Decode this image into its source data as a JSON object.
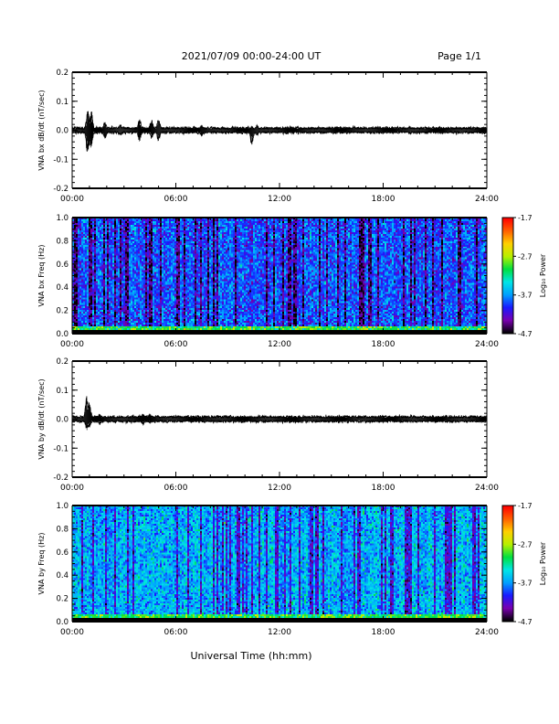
{
  "header": {
    "title": "2021/07/09  00:00-24:00 UT",
    "page": "Page 1/1"
  },
  "footer": {
    "xlabel": "Universal Time (hh:mm)"
  },
  "colors": {
    "trace": "#000000",
    "colormap": [
      "#000000",
      "#7a00b0",
      "#1a1aff",
      "#00a0ff",
      "#00e6e6",
      "#00e040",
      "#b8f000",
      "#ffd000",
      "#ff6000",
      "#ff0000"
    ]
  },
  "chart_data": [
    {
      "type": "line",
      "ylabel": "VNA bx dB/dt (nT/sec)",
      "x_ticks": [
        "00:00",
        "06:00",
        "12:00",
        "18:00",
        "24:00"
      ],
      "y_ticks": [
        "0.2",
        "0.1",
        "0.0",
        "-0.1",
        "-0.2"
      ],
      "xlim": [
        0,
        24
      ],
      "ylim": [
        -0.2,
        0.2
      ],
      "noise_floor": 0.004,
      "events": [
        {
          "t": 0.9,
          "amp_pos": 0.07,
          "amp_neg": -0.09
        },
        {
          "t": 1.1,
          "amp_pos": 0.07,
          "amp_neg": -0.06
        },
        {
          "t": 1.9,
          "amp_pos": 0.03,
          "amp_neg": -0.03
        },
        {
          "t": 2.8,
          "amp_pos": 0.02,
          "amp_neg": -0.02
        },
        {
          "t": 3.9,
          "amp_pos": 0.04,
          "amp_neg": -0.04
        },
        {
          "t": 4.6,
          "amp_pos": 0.04,
          "amp_neg": -0.03
        },
        {
          "t": 5.0,
          "amp_pos": 0.04,
          "amp_neg": -0.04
        },
        {
          "t": 7.5,
          "amp_pos": 0.02,
          "amp_neg": -0.02
        },
        {
          "t": 10.4,
          "amp_pos": 0.01,
          "amp_neg": -0.05
        },
        {
          "t": 10.7,
          "amp_pos": 0.02,
          "amp_neg": -0.02
        }
      ]
    },
    {
      "type": "heatmap",
      "ylabel": "VNA bx Freq (Hz)",
      "x_ticks": [
        "00:00",
        "06:00",
        "12:00",
        "18:00",
        "24:00"
      ],
      "y_ticks": [
        "1.0",
        "0.8",
        "0.6",
        "0.4",
        "0.2",
        "0.0"
      ],
      "xlim": [
        0,
        24
      ],
      "ylim": [
        0,
        1
      ],
      "colorbar_label": "Log₁₀ Power",
      "colorbar_ticks": [
        "-1.7",
        "-2.7",
        "-3.7",
        "-4.7"
      ],
      "zlim": [
        -4.7,
        -1.7
      ],
      "background_level": -3.9,
      "low_freq_level": -3.0,
      "variability": 0.45
    },
    {
      "type": "line",
      "ylabel": "VNA by dB/dt (nT/sec)",
      "x_ticks": [
        "00:00",
        "06:00",
        "12:00",
        "18:00",
        "24:00"
      ],
      "y_ticks": [
        "0.2",
        "0.1",
        "0.0",
        "-0.1",
        "-0.2"
      ],
      "xlim": [
        0,
        24
      ],
      "ylim": [
        -0.2,
        0.2
      ],
      "noise_floor": 0.004,
      "events": [
        {
          "t": 0.85,
          "amp_pos": 0.08,
          "amp_neg": -0.04
        },
        {
          "t": 1.0,
          "amp_pos": 0.06,
          "amp_neg": -0.03
        },
        {
          "t": 1.6,
          "amp_pos": 0.02,
          "amp_neg": -0.02
        },
        {
          "t": 4.1,
          "amp_pos": 0.02,
          "amp_neg": -0.02
        },
        {
          "t": 4.5,
          "amp_pos": 0.02,
          "amp_neg": -0.015
        }
      ]
    },
    {
      "type": "heatmap",
      "ylabel": "VNA by Freq (Hz)",
      "x_ticks": [
        "00:00",
        "06:00",
        "12:00",
        "18:00",
        "24:00"
      ],
      "y_ticks": [
        "1.0",
        "0.8",
        "0.6",
        "0.4",
        "0.2",
        "0.0"
      ],
      "xlim": [
        0,
        24
      ],
      "ylim": [
        0,
        1
      ],
      "colorbar_label": "Log₁₀ Power",
      "colorbar_ticks": [
        "-1.7",
        "-2.7",
        "-3.7",
        "-4.7"
      ],
      "zlim": [
        -4.7,
        -1.7
      ],
      "background_level": -3.6,
      "low_freq_level": -3.0,
      "variability": 0.45
    }
  ]
}
